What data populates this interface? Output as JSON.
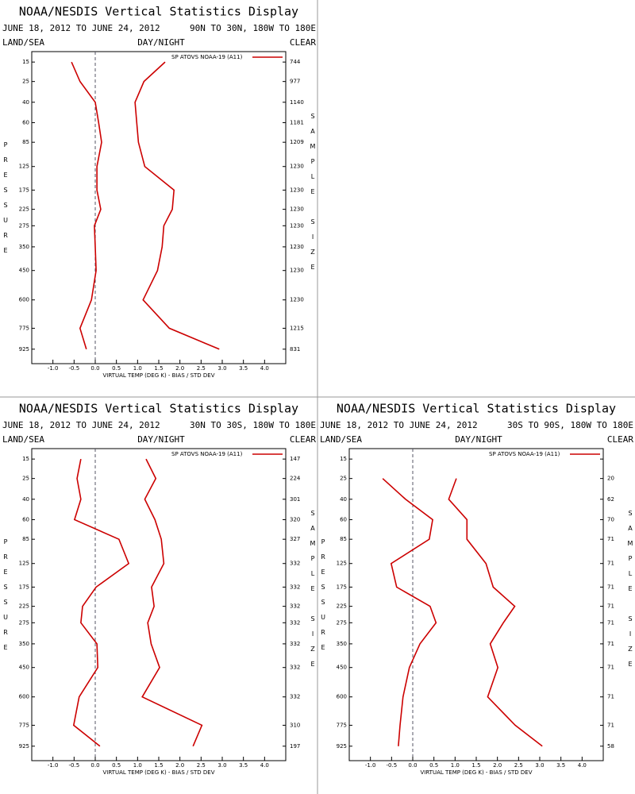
{
  "chart_data": [
    {
      "type": "line",
      "title": "NOAA/NESDIS Vertical Statistics Display",
      "subtitle": "JUNE 18, 2012 TO JUNE 24, 2012",
      "region": "90N TO 30N, 180W TO 180E",
      "left_header": "LAND/SEA",
      "center_header": "DAY/NIGHT",
      "right_header": "CLEAR",
      "y_label": "PRESSURE",
      "y2_label": "SAMPLE SIZE",
      "x_label": "VIRTUAL TEMP (DEG K) - BIAS / STD DEV",
      "y": [
        15,
        25,
        40,
        60,
        85,
        125,
        175,
        225,
        275,
        350,
        450,
        600,
        775,
        925
      ],
      "ylim": [
        11,
        1040
      ],
      "xlim": [
        -1.5,
        4.5
      ],
      "xticks": [
        {
          "value": -1,
          "label": "-1.0"
        },
        {
          "value": -0.5,
          "label": "-0.5"
        },
        {
          "value": 0,
          "label": "0.0"
        },
        {
          "value": 0.5,
          "label": "0.5"
        },
        {
          "value": 1,
          "label": "1.0"
        },
        {
          "value": 1.5,
          "label": "1.5"
        },
        {
          "value": 2,
          "label": "2.0"
        },
        {
          "value": 2.5,
          "label": "2.5"
        },
        {
          "value": 3,
          "label": "3.0"
        },
        {
          "value": 3.5,
          "label": "3.5"
        },
        {
          "value": 4,
          "label": "4.0"
        }
      ],
      "sample_size": [
        744,
        977,
        1140,
        1181,
        1209,
        1230,
        1230,
        1230,
        1230,
        1230,
        1230,
        1230,
        1215,
        831
      ],
      "series": [
        {
          "name": "SP ATOVS NOAA-19 (A11)",
          "color": "#cc0000",
          "values": [
            -0.56,
            -0.36,
            0.0,
            0.08,
            0.15,
            0.04,
            0.04,
            0.13,
            -0.02,
            0.0,
            0.02,
            -0.09,
            -0.36,
            -0.21
          ],
          "std_dev": [
            1.65,
            1.15,
            0.94,
            0.98,
            1.02,
            1.17,
            1.86,
            1.82,
            1.62,
            1.58,
            1.47,
            1.13,
            1.75,
            2.93
          ]
        }
      ]
    },
    {
      "type": "line",
      "title": "NOAA/NESDIS Vertical Statistics Display",
      "subtitle": "JUNE 18, 2012 TO JUNE 24, 2012",
      "region": "30N TO 30S, 180W TO 180E",
      "left_header": "LAND/SEA",
      "center_header": "DAY/NIGHT",
      "right_header": "CLEAR",
      "y_label": "PRESSURE",
      "y2_label": "SAMPLE SIZE",
      "x_label": "VIRTUAL TEMP (DEG K) - BIAS / STD DEV",
      "y": [
        15,
        25,
        40,
        60,
        85,
        125,
        175,
        225,
        275,
        350,
        450,
        600,
        775,
        925
      ],
      "ylim": [
        11,
        1040
      ],
      "xlim": [
        -1.5,
        4.5
      ],
      "xticks": [
        {
          "value": -1,
          "label": "-1.0"
        },
        {
          "value": -0.5,
          "label": "-0.5"
        },
        {
          "value": 0,
          "label": "0.0"
        },
        {
          "value": 0.5,
          "label": "0.5"
        },
        {
          "value": 1,
          "label": "1.0"
        },
        {
          "value": 1.5,
          "label": "1.5"
        },
        {
          "value": 2,
          "label": "2.0"
        },
        {
          "value": 2.5,
          "label": "2.5"
        },
        {
          "value": 3,
          "label": "3.0"
        },
        {
          "value": 3.5,
          "label": "3.5"
        },
        {
          "value": 4,
          "label": "4.0"
        }
      ],
      "sample_size": [
        147,
        224,
        301,
        320,
        327,
        332,
        332,
        332,
        332,
        332,
        332,
        332,
        310,
        197
      ],
      "series": [
        {
          "name": "SP ATOVS NOAA-19 (A11)",
          "color": "#cc0000",
          "values": [
            -0.34,
            -0.43,
            -0.34,
            -0.49,
            0.56,
            0.79,
            0.02,
            -0.3,
            -0.34,
            0.04,
            0.06,
            -0.38,
            -0.51,
            0.11
          ],
          "std_dev": [
            1.2,
            1.43,
            1.17,
            1.41,
            1.56,
            1.62,
            1.33,
            1.39,
            1.24,
            1.32,
            1.52,
            1.11,
            2.52,
            2.31
          ]
        }
      ]
    },
    {
      "type": "line",
      "title": "NOAA/NESDIS Vertical Statistics Display",
      "subtitle": "JUNE 18, 2012 TO JUNE 24, 2012",
      "region": "30S TO 90S, 180W TO 180E",
      "left_header": "LAND/SEA",
      "center_header": "DAY/NIGHT",
      "right_header": "CLEAR",
      "y_label": "PRESSURE",
      "y2_label": "SAMPLE SIZE",
      "x_label": "VIRTUAL TEMP (DEG K) - BIAS / STD DEV",
      "y": [
        15,
        25,
        40,
        60,
        85,
        125,
        175,
        225,
        275,
        350,
        450,
        600,
        775,
        925
      ],
      "ylim": [
        11,
        1040
      ],
      "xlim": [
        -1.5,
        4.5
      ],
      "xticks": [
        {
          "value": -1,
          "label": "-1.0"
        },
        {
          "value": -0.5,
          "label": "-0.5"
        },
        {
          "value": 0,
          "label": "0.0"
        },
        {
          "value": 0.5,
          "label": "0.5"
        },
        {
          "value": 1,
          "label": "1.0"
        },
        {
          "value": 1.5,
          "label": "1.5"
        },
        {
          "value": 2,
          "label": "2.0"
        },
        {
          "value": 2.5,
          "label": "2.5"
        },
        {
          "value": 3,
          "label": "3.0"
        },
        {
          "value": 3.5,
          "label": "3.5"
        },
        {
          "value": 4,
          "label": "4.0"
        }
      ],
      "sample_size": [
        null,
        20,
        62,
        70,
        71,
        71,
        71,
        71,
        71,
        71,
        71,
        71,
        71,
        58
      ],
      "series": [
        {
          "name": "SP ATOVS NOAA-19 (A11)",
          "color": "#cc0000",
          "values": [
            null,
            -0.71,
            -0.17,
            0.47,
            0.39,
            -0.51,
            -0.38,
            0.41,
            0.55,
            0.17,
            -0.08,
            -0.23,
            -0.3,
            -0.34
          ],
          "std_dev": [
            null,
            1.03,
            0.85,
            1.28,
            1.28,
            1.73,
            1.9,
            2.41,
            2.14,
            1.83,
            2.01,
            1.77,
            2.42,
            3.06
          ]
        }
      ]
    }
  ]
}
